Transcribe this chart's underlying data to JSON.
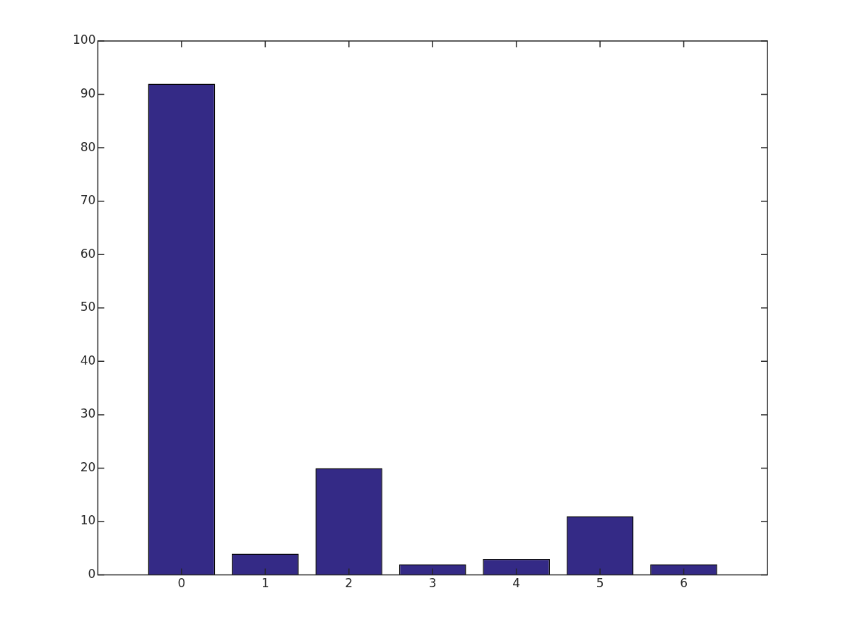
{
  "chart_data": {
    "type": "bar",
    "x": [
      0,
      1,
      2,
      3,
      4,
      5,
      6
    ],
    "values": [
      92,
      4,
      20,
      2,
      3,
      11,
      2
    ],
    "color": "#342a86",
    "xlim": [
      -1,
      7
    ],
    "xticks": [
      0,
      1,
      2,
      3,
      4,
      5,
      6
    ],
    "ylim": [
      0,
      100
    ],
    "yticks": [
      0,
      10,
      20,
      30,
      40,
      50,
      60,
      70,
      80,
      90,
      100
    ],
    "grid": false
  }
}
